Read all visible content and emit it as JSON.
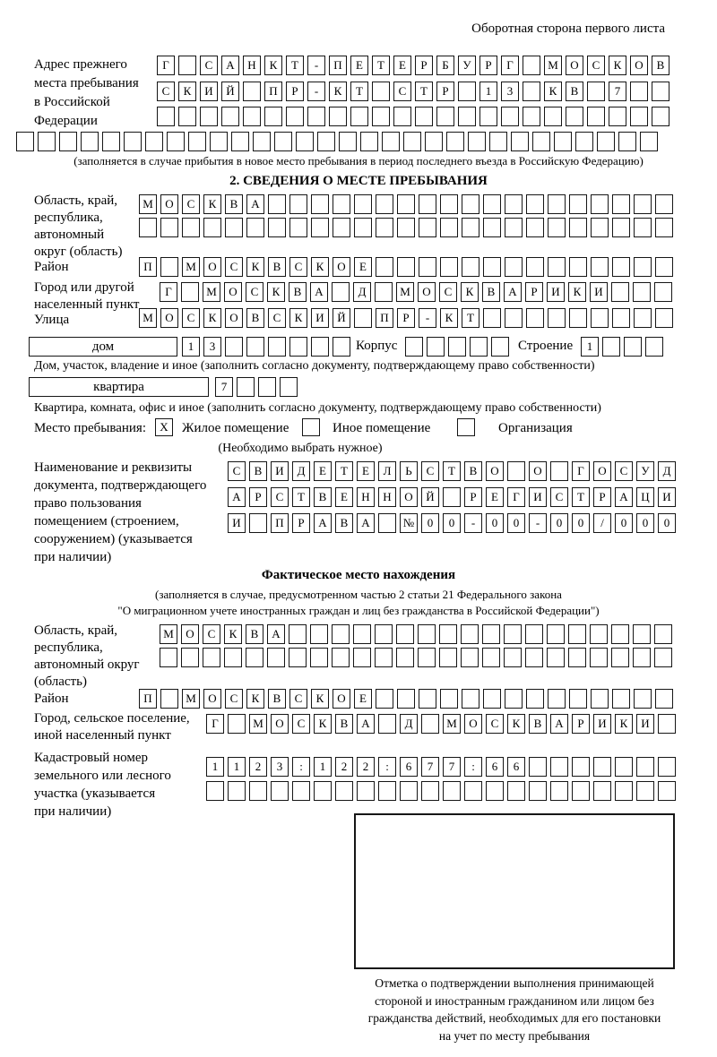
{
  "colors": {
    "background": "#ffffff",
    "text": "#000000",
    "border": "#161616"
  },
  "header": {
    "note": "Оборотная сторона первого листа"
  },
  "prev_address": {
    "label": "Адрес прежнего\nместа пребывания\nв Российской\nФедерации",
    "row1": {
      "text": "Г САНКТ-ПЕТЕРБУРГ МОСКОВ",
      "count": 24
    },
    "row2": {
      "text": "СКИЙ ПР-КТ СТР 13 КВ 7",
      "count": 24
    },
    "row3": {
      "text": "",
      "count": 24
    },
    "row4": {
      "text": "",
      "count": 30
    },
    "note": "(заполняется в случае прибытия в новое место пребывания в период последнего въезда в Российскую Федерацию)"
  },
  "section2": {
    "title": "2. СВЕДЕНИЯ О МЕСТЕ ПРЕБЫВАНИЯ",
    "region_label": "Область, край,\nреспублика,\nавтономный\nокруг (область)",
    "region_row1": {
      "text": "МОСКВА",
      "count": 25
    },
    "region_row2": {
      "text": "",
      "count": 25
    },
    "district_label": "Район",
    "district_row": {
      "text": "П МОСКВСКОЕ",
      "count": 25
    },
    "city_label": "Город или другой\nнаселенный пункт",
    "city_row": {
      "text": "Г МОСКВА Д МОСКВАРИКИ",
      "count": 24
    },
    "street_label": "Улица",
    "street_row": {
      "text": "МОСКОВСКИЙ ПР-КТ",
      "count": 25
    },
    "house": {
      "box_label": "дом",
      "number_row": {
        "text": "13",
        "count": 8
      },
      "korpus_label": "Корпус",
      "korpus_row": {
        "text": "",
        "count": 5
      },
      "stroenie_label": "Строение",
      "stroenie_row": {
        "text": "1",
        "count": 4
      },
      "caption": "Дом, участок, владение и иное (заполнить согласно документу, подтверждающему право собственности)"
    },
    "apartment": {
      "box_label": "квартира",
      "number_row": {
        "text": "7",
        "count": 4
      },
      "caption": "Квартира, комната, офис и иное (заполнить согласно документу, подтверждающему право собственности)"
    },
    "stay_type": {
      "label": "Место пребывания:",
      "options": [
        {
          "label": "Жилое помещение",
          "mark": "X"
        },
        {
          "label": "Иное помещение",
          "mark": ""
        },
        {
          "label": "Организация",
          "mark": ""
        }
      ],
      "note": "(Необходимо выбрать нужное)"
    },
    "document": {
      "label": "Наименование и реквизиты\nдокумента, подтверждающего\nправо пользования\nпомещением (строением,\nсооружением) (указывается\nпри наличии)",
      "row1": {
        "text": "СВИДЕТЕЛЬСТВО О ГОСУД",
        "count": 21
      },
      "row2": {
        "text": "АРСТВЕННОЙ РЕГИСТРАЦИ",
        "count": 21
      },
      "row3": {
        "text": "И ПРАВА №00-00-00/000",
        "count": 21
      }
    }
  },
  "actual_location": {
    "title": "Фактическое место нахождения",
    "note1": "(заполняется в случае, предусмотренном частью 2 статьи 21 Федерального закона",
    "note2": "\"О миграционном учете иностранных граждан и лиц без гражданства в Российской Федерации\")",
    "region_label": "Область, край,\nреспублика,\nавтономный округ\n(область)",
    "region_row1": {
      "text": "МОСКВА",
      "count": 24
    },
    "region_row2": {
      "text": "",
      "count": 24
    },
    "district_label": "Район",
    "district_row": {
      "text": "П МОСКВСКОЕ",
      "count": 25
    },
    "city_label": "Город, сельское поселение,\nиной населенный пункт",
    "city_row": {
      "text": "Г МОСКВА Д МОСКВАРИКИ",
      "count": 22
    },
    "cadastre_label": "Кадастровый номер\nземельного или лесного\nучастка (указывается\nпри наличии)",
    "cadastre_row1": {
      "text": "1123:122:677:66",
      "count": 22
    },
    "cadastre_row2": {
      "text": "",
      "count": 22
    },
    "stamp_caption": "Отметка о подтверждении выполнения принимающей\nстороной и иностранным гражданином или лицом без\nгражданства действий, необходимых для его постановки\nна учет по месту пребывания"
  }
}
